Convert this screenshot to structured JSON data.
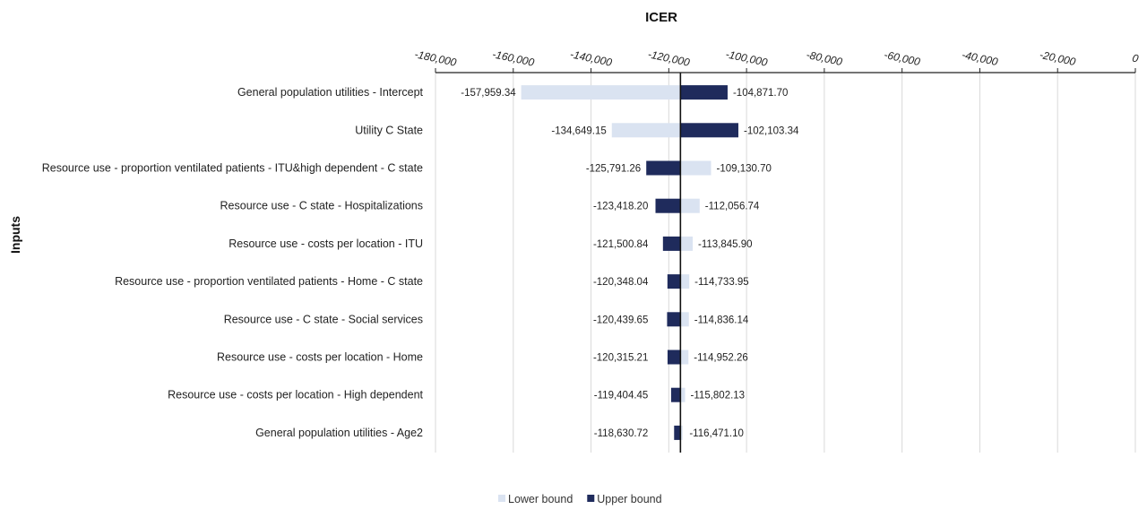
{
  "chart_data": {
    "type": "bar",
    "orientation": "horizontal",
    "subtype": "tornado",
    "title": "ICER",
    "xlabel": "",
    "ylabel": "Inputs",
    "xlim": [
      -180000,
      0
    ],
    "base_value": -117000,
    "x_ticks": [
      -180000,
      -160000,
      -140000,
      -120000,
      -100000,
      -80000,
      -60000,
      -40000,
      -20000,
      0
    ],
    "x_tick_labels": [
      "-180,000",
      "-160,000",
      "-140,000",
      "-120,000",
      "-100,000",
      "-80,000",
      "-60,000",
      "-40,000",
      "-20,000",
      "0"
    ],
    "x_axis_position": "top",
    "grid": true,
    "legend_position": "bottom",
    "categories": [
      "General population utilities - Intercept",
      "Utility C State",
      "Resource use - proportion ventilated patients - ITU&high dependent - C state",
      "Resource use - C state - Hospitalizations",
      "Resource use - costs per location - ITU",
      "Resource use - proportion ventilated patients - Home - C state",
      "Resource use - C state - Social services",
      "Resource use - costs per location - Home",
      "Resource use - costs per location - High dependent",
      "General population utilities - Age2"
    ],
    "series": [
      {
        "name": "Lower bound",
        "color": "#dae3f1",
        "values": [
          -157959.34,
          -134649.15,
          -109130.7,
          -112056.74,
          -113845.9,
          -114733.95,
          -114836.14,
          -114952.26,
          -115802.13,
          -116471.1
        ],
        "labels": [
          "-157,959.34",
          "-134,649.15",
          "-109,130.70",
          "-112,056.74",
          "-113,845.90",
          "-114,733.95",
          "-114,836.14",
          "-114,952.26",
          "-115,802.13",
          "-116,471.10"
        ]
      },
      {
        "name": "Upper bound",
        "color": "#1f2b5c",
        "values": [
          -104871.7,
          -102103.34,
          -125791.26,
          -123418.2,
          -121500.84,
          -120348.04,
          -120439.65,
          -120315.21,
          -119404.45,
          -118630.72
        ],
        "labels": [
          "-104,871.70",
          "-102,103.34",
          "-125,791.26",
          "-123,418.20",
          "-121,500.84",
          "-120,348.04",
          "-120,439.65",
          "-120,315.21",
          "-119,404.45",
          "-118,630.72"
        ]
      }
    ]
  }
}
